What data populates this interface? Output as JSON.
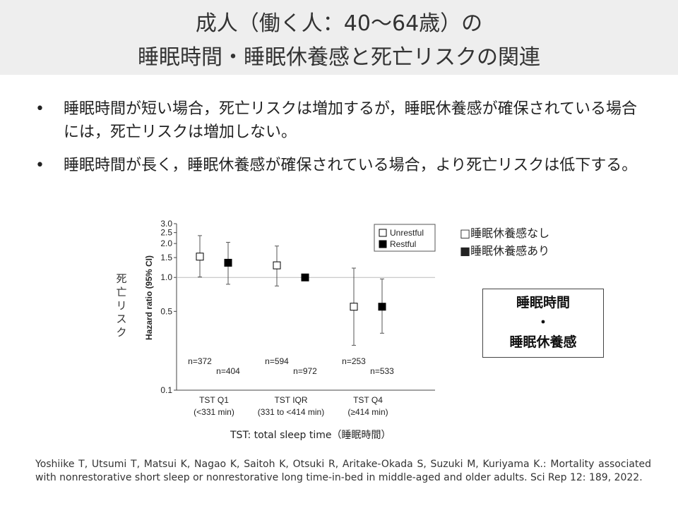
{
  "header": {
    "title_line1": "成人（働く人：40〜64歳）の",
    "title_line2": "睡眠時間・睡眠休養感と死亡リスクの関連"
  },
  "bullets": [
    {
      "marker": "•",
      "text": "睡眠時間が短い場合，死亡リスクは増加するが，睡眠休養感が確保されている場合には，死亡リスクは増加しない。"
    },
    {
      "marker": "•",
      "text": "睡眠時間が長く，睡眠休養感が確保されている場合，より死亡リスクは低下する。"
    }
  ],
  "legend_jp": {
    "unrestful": "□睡眠休養感なし",
    "restful": "■睡眠休養感あり"
  },
  "summary_box": {
    "line1": "睡眠時間",
    "line2": "・",
    "line3": "睡眠休養感"
  },
  "tst_note": "TST: total sleep time（睡眠時間）",
  "reference": "Yoshiike T, Utsumi T, Matsui K, Nagao K, Saitoh K, Otsuki R, Aritake-Okada S, Suzuki M, Kuriyama K.: Mortality associated with nonrestorative short sleep or nonrestorative long time-in-bed in middle-aged and older adults. Sci Rep 12: 189, 2022.",
  "chart_data": {
    "type": "scatter",
    "scale": "log",
    "ylabel": "Hazard ratio (95% CI)",
    "side_label": "死亡リスク",
    "ylim": [
      0.1,
      3.0
    ],
    "yticks": [
      0.1,
      0.5,
      1.0,
      1.5,
      2.0,
      2.5,
      3.0
    ],
    "ytick_labels": [
      "0.1",
      "0.5",
      "1.0",
      "1.5",
      "2.0",
      "2.5",
      "3.0"
    ],
    "reference_line": 1.0,
    "categories": [
      {
        "label": "TST Q1",
        "sublabel": "(<331 min)"
      },
      {
        "label": "TST IQR",
        "sublabel": "(331 to <414 min)"
      },
      {
        "label": "TST Q4",
        "sublabel": "(≥414 min)"
      }
    ],
    "legend_position": "top-right",
    "series": [
      {
        "name": "Unrestful",
        "marker": "open-square",
        "points": [
          {
            "hr": 1.53,
            "lower": 1.01,
            "upper": 2.35,
            "n_label": "n=372"
          },
          {
            "hr": 1.28,
            "lower": 0.84,
            "upper": 1.9,
            "n_label": "n=594"
          },
          {
            "hr": 0.55,
            "lower": 0.25,
            "upper": 1.21,
            "n_label": "n=253"
          }
        ]
      },
      {
        "name": "Restful",
        "marker": "filled-square",
        "points": [
          {
            "hr": 1.35,
            "lower": 0.87,
            "upper": 2.05,
            "n_label": "n=404"
          },
          {
            "hr": 1.0,
            "lower": null,
            "upper": null,
            "n_label": "n=972"
          },
          {
            "hr": 0.55,
            "lower": 0.32,
            "upper": 0.97,
            "n_label": "n=533"
          }
        ]
      }
    ]
  }
}
